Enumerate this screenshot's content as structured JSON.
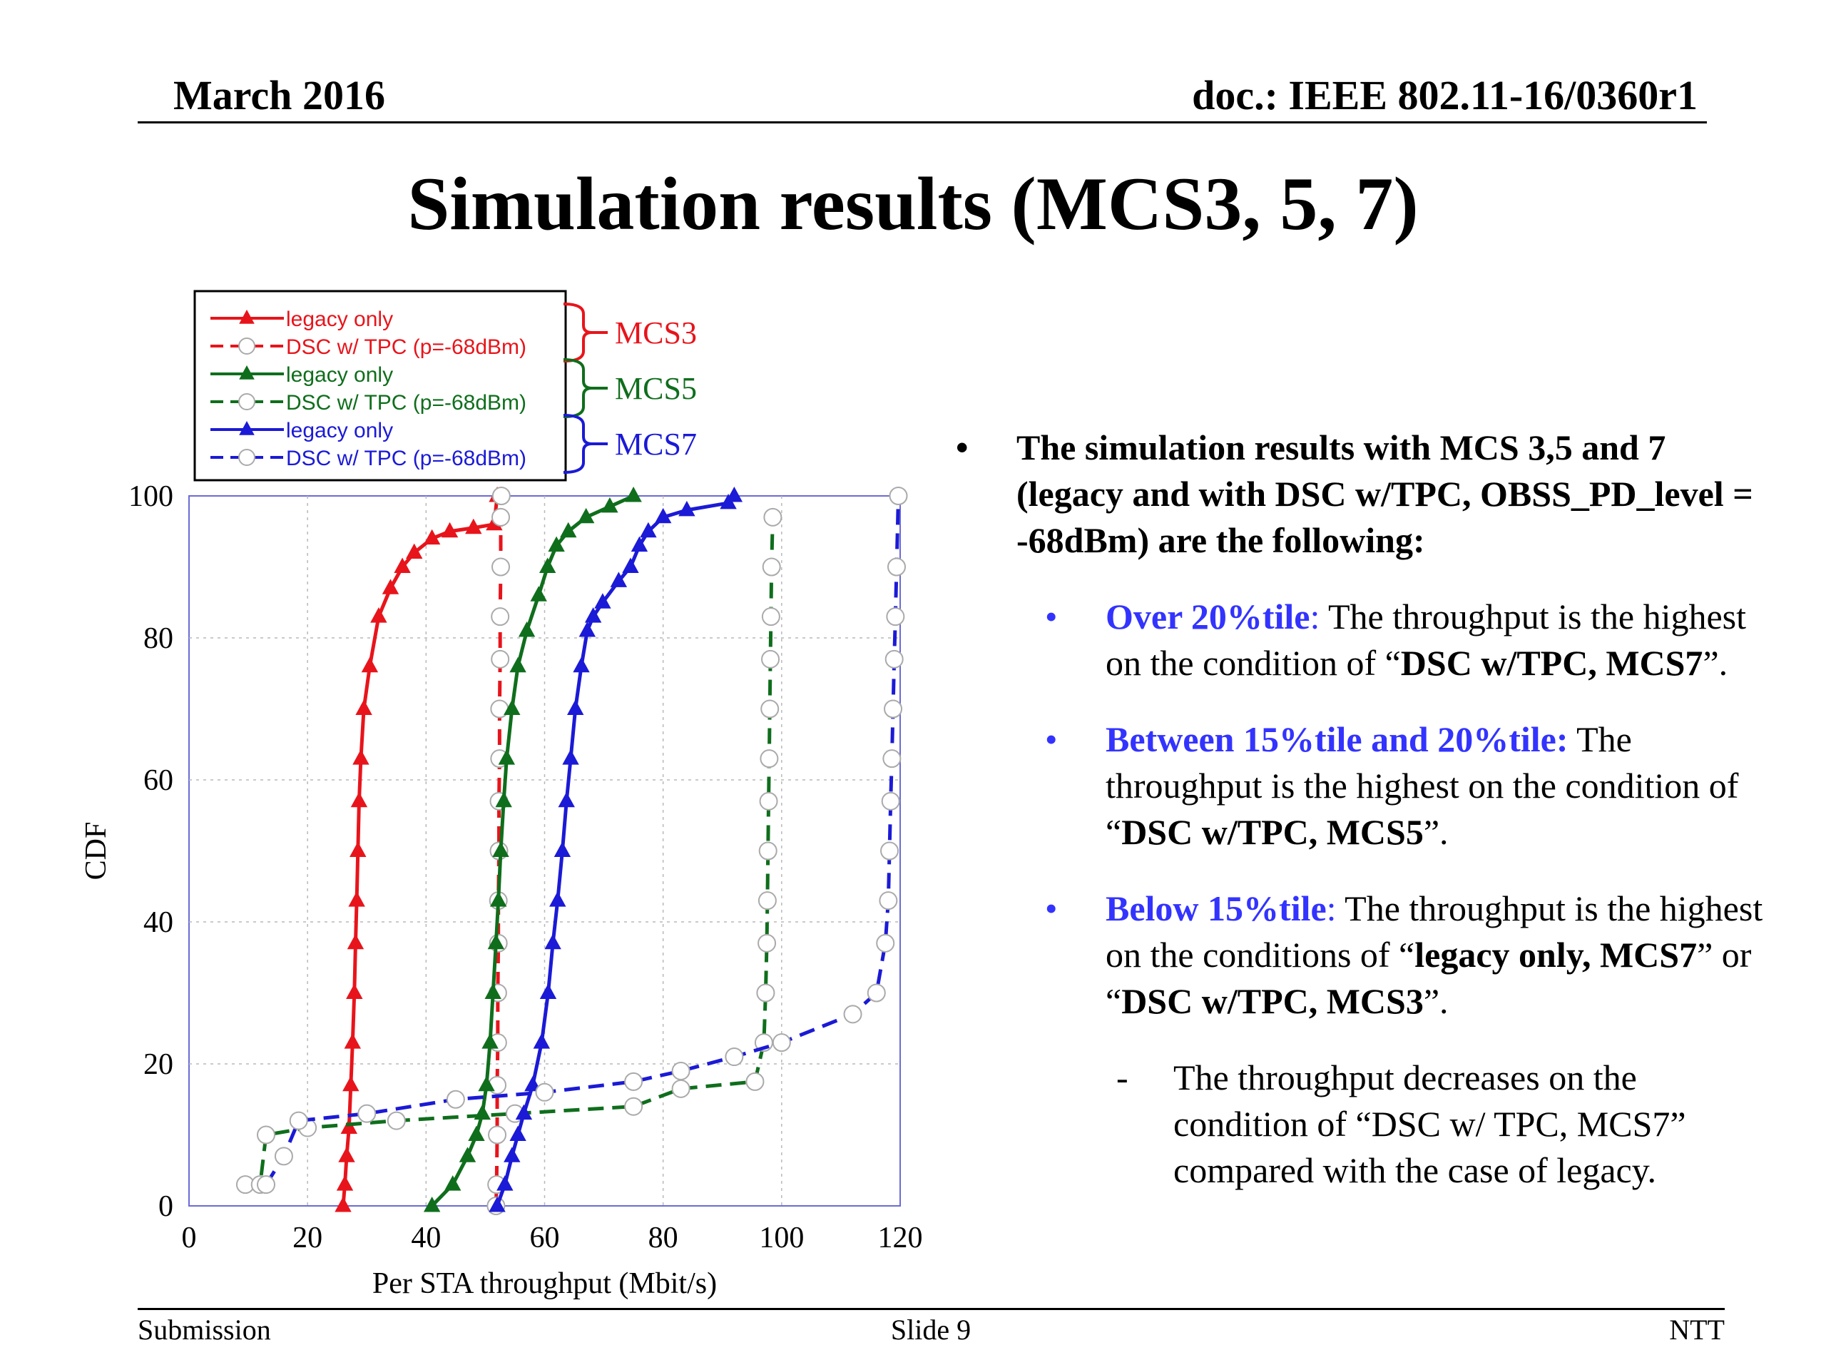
{
  "header": {
    "date": "March 2016",
    "doc": "doc.: IEEE 802.11-16/0360r1"
  },
  "title": "Simulation results (MCS3, 5, 7)",
  "footer": {
    "left": "Submission",
    "center": "Slide 9",
    "right": "NTT"
  },
  "colors": {
    "mcs3": "#e8141b",
    "mcs5": "#0f6e1c",
    "mcs7": "#1b1ad6",
    "bullet_head": "#3333ff"
  },
  "chart_data": {
    "type": "line",
    "xlabel": "Per STA throughput (Mbit/s)",
    "ylabel": "CDF",
    "xlim": [
      0,
      120
    ],
    "ylim": [
      0,
      100
    ],
    "xticks": [
      0,
      20,
      40,
      60,
      80,
      100,
      120
    ],
    "yticks": [
      0,
      20,
      40,
      60,
      80,
      100
    ],
    "grid": true,
    "legend_placement": "top-left, above plot",
    "legend_groups": [
      "MCS3",
      "MCS5",
      "MCS7"
    ],
    "series": [
      {
        "name": "legacy only",
        "group": "MCS3",
        "color": "#e8141b",
        "style": "solid",
        "marker": "triangle",
        "x": [
          26,
          26.3,
          26.6,
          27,
          27.3,
          27.6,
          27.9,
          28.1,
          28.3,
          28.5,
          28.7,
          29,
          29.5,
          30.5,
          32,
          34,
          36,
          38,
          41,
          44,
          48,
          51.5,
          52
        ],
        "y": [
          0,
          3,
          7,
          11,
          17,
          23,
          30,
          37,
          43,
          50,
          57,
          63,
          70,
          76,
          83,
          87,
          90,
          92,
          94,
          95,
          95.5,
          96,
          100
        ]
      },
      {
        "name": "DSC w/ TPC (p=-68dBm)",
        "group": "MCS3",
        "color": "#e8141b",
        "style": "dashed",
        "marker": "circle",
        "x": [
          51.8,
          51.9,
          52,
          52,
          52.1,
          52.1,
          52.2,
          52.2,
          52.3,
          52.3,
          52.4,
          52.4,
          52.5,
          52.5,
          52.6,
          52.6,
          52.7
        ],
        "y": [
          0,
          3,
          10,
          17,
          23,
          30,
          37,
          43,
          50,
          57,
          63,
          70,
          77,
          83,
          90,
          97,
          100
        ]
      },
      {
        "name": "legacy only",
        "group": "MCS5",
        "color": "#0f6e1c",
        "style": "solid",
        "marker": "triangle",
        "x": [
          41,
          44.5,
          47,
          48.5,
          49.5,
          50.2,
          50.8,
          51.3,
          51.8,
          52.2,
          52.6,
          53.1,
          53.6,
          54.5,
          55.5,
          57,
          59,
          60.5,
          62,
          64,
          67,
          71,
          75
        ],
        "y": [
          0,
          3,
          7,
          10,
          13,
          17,
          23,
          30,
          37,
          43,
          50,
          57,
          63,
          70,
          76,
          81,
          86,
          90,
          93,
          95,
          97,
          98.5,
          100
        ]
      },
      {
        "name": "DSC w/ TPC (p=-68dBm)",
        "group": "MCS5",
        "color": "#0f6e1c",
        "style": "dashed",
        "marker": "circle",
        "x": [
          9.5,
          12,
          13,
          20,
          35,
          55,
          75,
          83,
          95.5,
          97,
          97.3,
          97.5,
          97.6,
          97.7,
          97.8,
          97.9,
          98,
          98.1,
          98.2,
          98.3,
          98.5
        ],
        "y": [
          3,
          3,
          10,
          11,
          12,
          13,
          14,
          16.5,
          17.5,
          23,
          30,
          37,
          43,
          50,
          57,
          63,
          70,
          77,
          83,
          90,
          97
        ]
      },
      {
        "name": "legacy only",
        "group": "MCS7",
        "color": "#1b1ad6",
        "style": "solid",
        "marker": "triangle",
        "x": [
          52,
          53.3,
          54.5,
          55.5,
          56.5,
          58,
          59.5,
          60.6,
          61.4,
          62.2,
          63,
          63.7,
          64.4,
          65.2,
          66.2,
          67.2,
          68.2,
          69.8,
          72.5,
          74.5,
          76,
          77.5,
          80,
          84,
          91,
          92
        ],
        "y": [
          0,
          3,
          7,
          10,
          13,
          17,
          23,
          30,
          37,
          43,
          50,
          57,
          63,
          70,
          76,
          81,
          83,
          85,
          88,
          90,
          93,
          95,
          97,
          98,
          99,
          100
        ]
      },
      {
        "name": "DSC w/ TPC (p=-68dBm)",
        "group": "MCS7",
        "color": "#1b1ad6",
        "style": "dashed",
        "marker": "circle",
        "x": [
          13,
          16,
          18.5,
          30,
          45,
          60,
          75,
          83,
          92,
          100,
          112,
          116,
          117.5,
          118,
          118.2,
          118.4,
          118.6,
          118.8,
          119,
          119.2,
          119.4,
          119.7
        ],
        "y": [
          3,
          7,
          12,
          13,
          15,
          16,
          17.5,
          19,
          21,
          23,
          27,
          30,
          37,
          43,
          50,
          57,
          63,
          70,
          77,
          83,
          90,
          100
        ]
      }
    ]
  },
  "bullets": {
    "main": "The simulation results with MCS 3,5 and 7 (legacy and with DSC w/TPC, OBSS_PD_level = -68dBm) are the following:",
    "b1": {
      "head": "Over 20%tile",
      "sep": ":  ",
      "t1": "The throughput is the highest on the condition of “",
      "strong": "DSC  w/TPC, MCS7",
      "t2": "”."
    },
    "b2": {
      "head": "Between 15%tile and 20%tile:",
      "sep": "  ",
      "t1": "The throughput is the highest on the condition of “",
      "strong": "DSC w/TPC, MCS5",
      "t2": "”."
    },
    "b3": {
      "head": "Below 15%tile",
      "sep": ":  ",
      "t1": "The throughput is the highest on the conditions of “",
      "strong1": "legacy only, MCS7",
      "t2": "” or “",
      "strong2": "DSC w/TPC,  MCS3",
      "t3": "”."
    },
    "sub": "The throughput decreases on the condition of “DSC w/ TPC, MCS7” compared with the case of legacy."
  }
}
